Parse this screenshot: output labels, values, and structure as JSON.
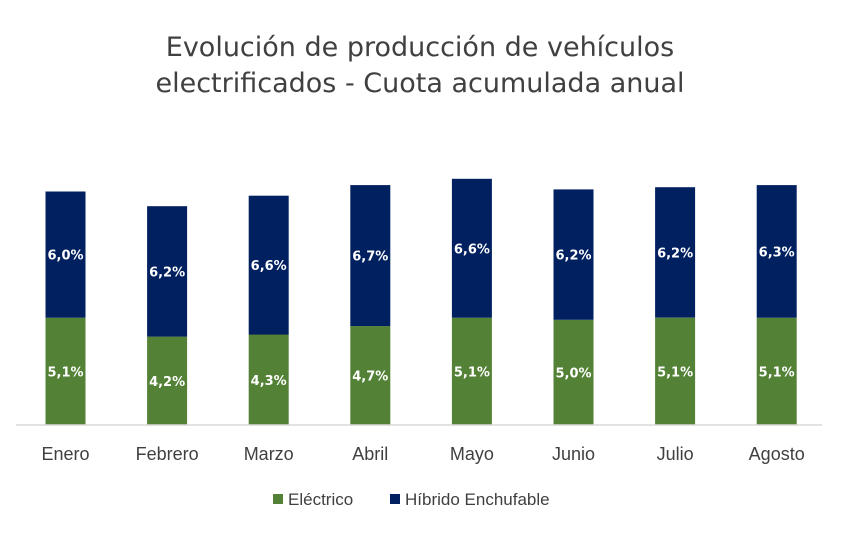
{
  "chart_data": {
    "type": "bar",
    "stacked": true,
    "title": [
      "Evolución de producción de vehículos",
      "electrificados - Cuota acumulada anual"
    ],
    "xlabel": "",
    "ylabel": "",
    "ylim": [
      0,
      12.5
    ],
    "grid": false,
    "legend_position": "bottom",
    "categories": [
      "Enero",
      "Febrero",
      "Marzo",
      "Abril",
      "Mayo",
      "Junio",
      "Julio",
      "Agosto"
    ],
    "series": [
      {
        "name": "Eléctrico",
        "color": "#538135",
        "values": [
          5.1,
          4.2,
          4.3,
          4.7,
          5.1,
          5.0,
          5.1,
          5.1
        ],
        "labels": [
          "5,1%",
          "4,2%",
          "4,3%",
          "4,7%",
          "5,1%",
          "5,0%",
          "5,1%",
          "5,1%"
        ]
      },
      {
        "name": "Híbrido Enchufable",
        "color": "#002060",
        "values": [
          6.0,
          6.2,
          6.6,
          6.7,
          6.6,
          6.2,
          6.2,
          6.3
        ],
        "labels": [
          "6,0%",
          "6,2%",
          "6,6%",
          "6,7%",
          "6,6%",
          "6,2%",
          "6,2%",
          "6,3%"
        ]
      }
    ]
  }
}
